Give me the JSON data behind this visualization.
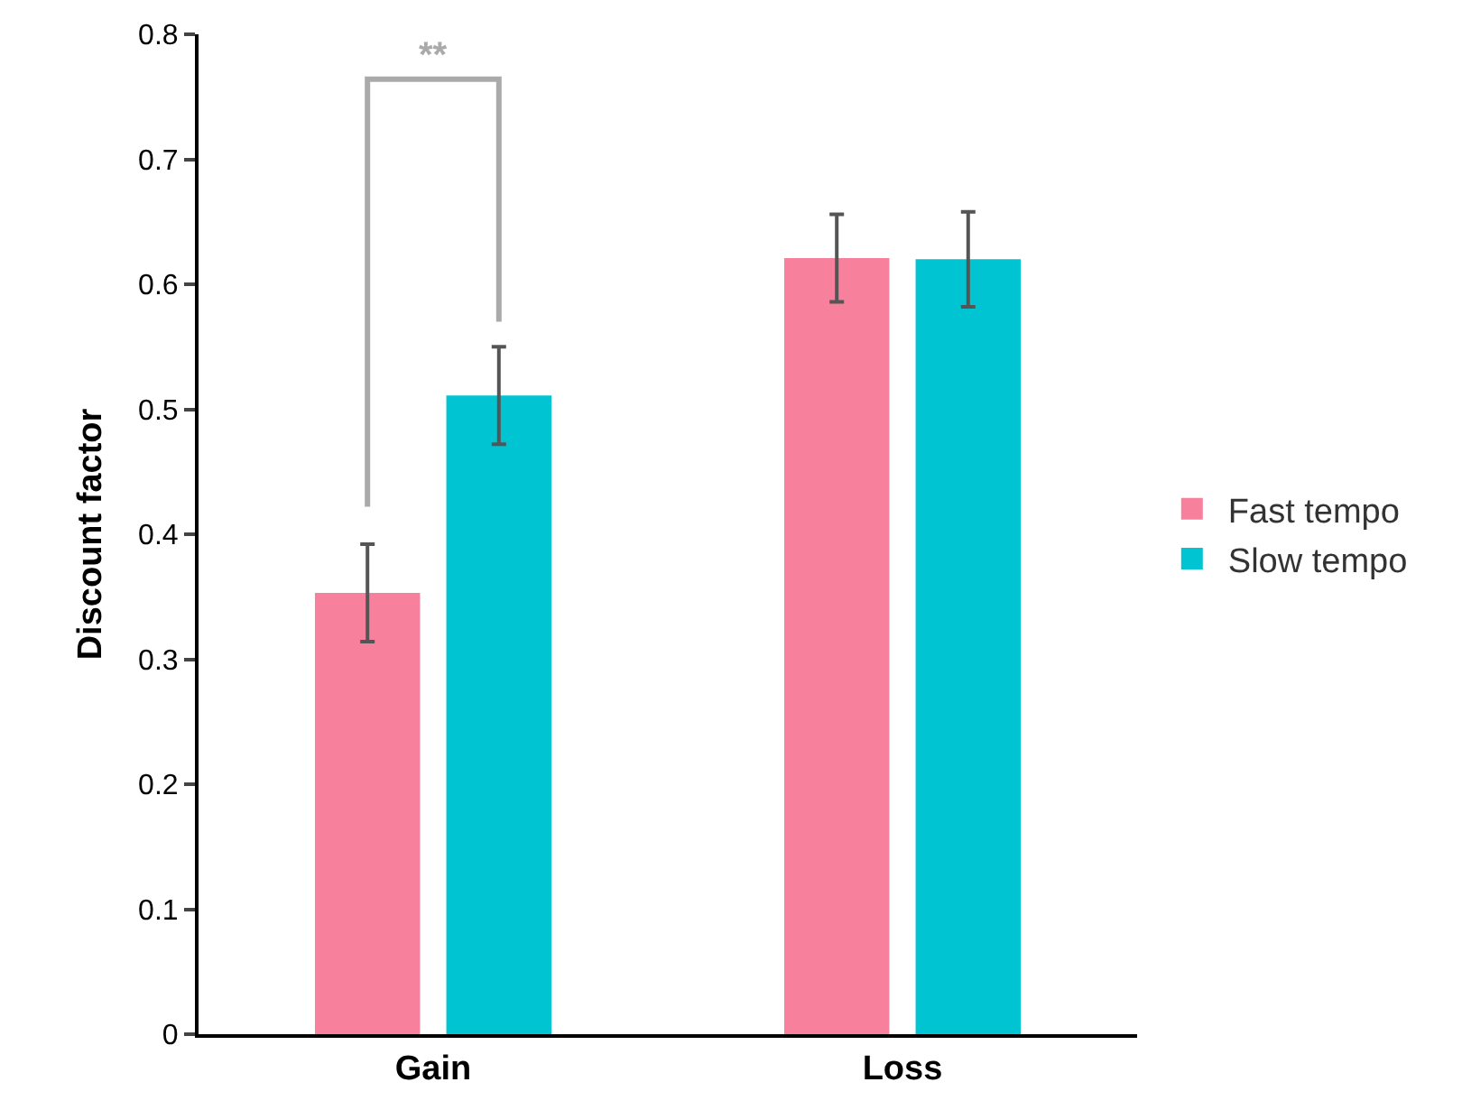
{
  "chart_data": {
    "type": "bar",
    "ylabel": "Discount factor",
    "categories": [
      "Gain",
      "Loss"
    ],
    "series": [
      {
        "name": "Fast tempo",
        "color": "#f7819d",
        "values": [
          0.353,
          0.621
        ],
        "errors": [
          0.039,
          0.035
        ]
      },
      {
        "name": "Slow tempo",
        "color": "#00c4d2",
        "values": [
          0.511,
          0.62
        ],
        "errors": [
          0.039,
          0.038
        ]
      }
    ],
    "ylim": [
      0,
      0.8
    ],
    "yticks": [
      0,
      0.1,
      0.2,
      0.3,
      0.4,
      0.5,
      0.6,
      0.7,
      0.8
    ],
    "annotations": [
      "**"
    ],
    "legend": "right"
  }
}
